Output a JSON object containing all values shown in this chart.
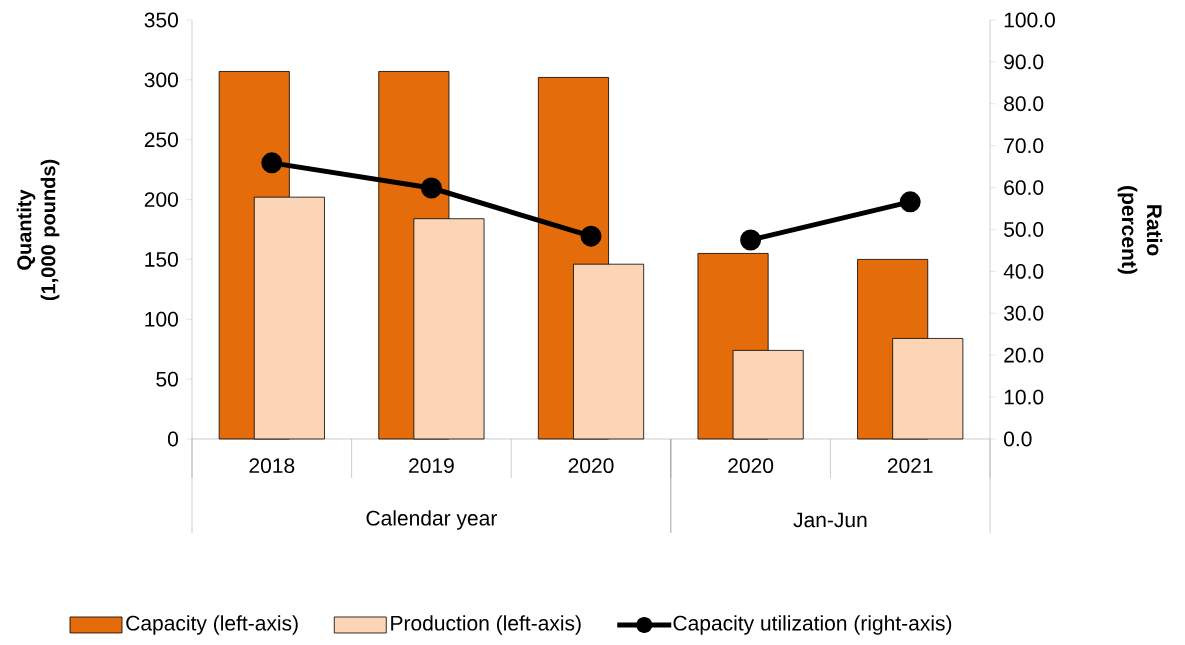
{
  "chart_data": {
    "type": "bar",
    "categories": [
      "2018",
      "2019",
      "2020",
      "2020",
      "2021"
    ],
    "ylabel": "Quantity (1,000 pounds)",
    "y2label": "Ratio (percent)",
    "ylim": [
      0,
      350
    ],
    "yticks": [
      0,
      50,
      100,
      150,
      200,
      250,
      300,
      350
    ],
    "y2lim": [
      0,
      100
    ],
    "y2ticks": [
      {
        "value": 0,
        "label": "0.0"
      },
      {
        "value": 10,
        "label": "10.0"
      },
      {
        "value": 20,
        "label": "20.0"
      },
      {
        "value": 30,
        "label": "30.0"
      },
      {
        "value": 40,
        "label": "40.0"
      },
      {
        "value": 50,
        "label": "50.0"
      },
      {
        "value": 60,
        "label": "60.0"
      },
      {
        "value": 70,
        "label": "70.0"
      },
      {
        "value": 80,
        "label": "80.0"
      },
      {
        "value": 90,
        "label": "90.0"
      },
      {
        "value": 100,
        "label": "100.0"
      }
    ],
    "annotations": [
      "Calendar year",
      "Jan-Jun"
    ],
    "legend": "bottom",
    "grid": false,
    "marker": "circle",
    "series": [
      {
        "name": "Capacity (left-axis)",
        "color": "#e46c0a",
        "values": [
          307,
          307,
          302,
          155,
          150
        ]
      },
      {
        "name": "Production (left-axis)",
        "color": "#fbd5b5",
        "values": [
          202,
          184,
          146,
          74,
          84
        ]
      },
      {
        "name": "Capacity utilization (right-axis)",
        "type": "line",
        "axis": "y2",
        "color": "#000000",
        "values": [
          65.9,
          59.9,
          48.4,
          null,
          null
        ]
      },
      {
        "type": "line",
        "axis": "y2",
        "color": "#000000",
        "values": [
          null,
          null,
          null,
          47.5,
          56.6
        ]
      }
    ]
  }
}
